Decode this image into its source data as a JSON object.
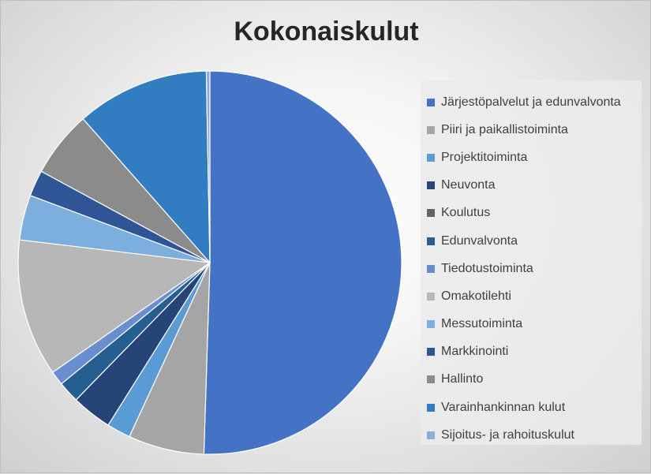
{
  "chart_data": {
    "type": "pie",
    "title": "Kokonaiskulut",
    "legend_position": "right",
    "start_angle_deg": 0,
    "direction": "clockwise",
    "slices": [
      {
        "name": "Järjestöpalvelut ja edunvalvonta",
        "value": 50.5,
        "color": "#4472C4"
      },
      {
        "name": "Piiri ja paikallistoiminta",
        "value": 6.4,
        "color": "#A5A5A5"
      },
      {
        "name": "Projektitoiminta",
        "value": 2.0,
        "color": "#5B9BD5"
      },
      {
        "name": "Neuvonta",
        "value": 3.4,
        "color": "#264478"
      },
      {
        "name": "Koulutus",
        "value": 0.0,
        "color": "#636363"
      },
      {
        "name": "Edunvalvonta",
        "value": 1.8,
        "color": "#255E91"
      },
      {
        "name": "Tiedotustoiminta",
        "value": 1.2,
        "color": "#698ED0"
      },
      {
        "name": "Omakotilehti",
        "value": 11.6,
        "color": "#B7B7B7"
      },
      {
        "name": "Messutoiminta",
        "value": 3.8,
        "color": "#7CAFDD"
      },
      {
        "name": "Markkinointi",
        "value": 2.2,
        "color": "#2F5597"
      },
      {
        "name": "Hallinto",
        "value": 5.6,
        "color": "#8B8B8B"
      },
      {
        "name": "Varainhankinnan kulut",
        "value": 11.2,
        "color": "#327DC2"
      },
      {
        "name": "Sijoitus- ja rahoituskulut",
        "value": 0.3,
        "color": "#8FAADC"
      }
    ]
  }
}
